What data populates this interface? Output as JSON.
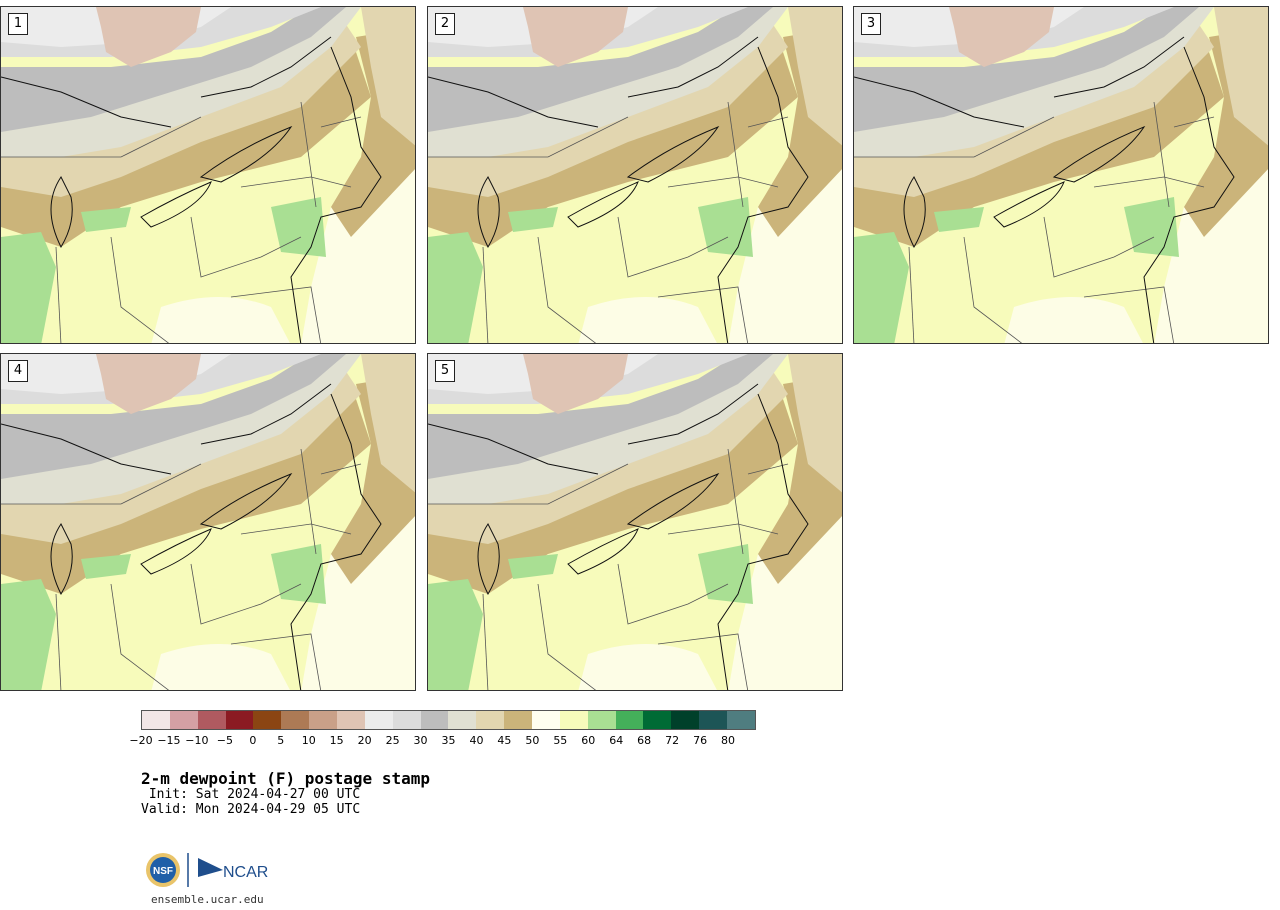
{
  "panels": [
    {
      "label": "1"
    },
    {
      "label": "2"
    },
    {
      "label": "3"
    },
    {
      "label": "4"
    },
    {
      "label": "5"
    }
  ],
  "colorbar": {
    "colors": [
      "#f2e6e6",
      "#d4a0a4",
      "#b05a60",
      "#8b1a22",
      "#8b4513",
      "#ad7a55",
      "#c9a088",
      "#dfc4b4",
      "#ececec",
      "#dcdcdc",
      "#bdbdbd",
      "#e0e0d2",
      "#e2d6b0",
      "#cbb47a",
      "#fffff0",
      "#f7fbbb",
      "#a9df93",
      "#44b05a",
      "#006b35",
      "#00402a",
      "#1d5556",
      "#4f7d80"
    ],
    "ticks": [
      "−20",
      "−15",
      "−10",
      "−5",
      "0",
      "5",
      "10",
      "15",
      "20",
      "25",
      "30",
      "35",
      "40",
      "45",
      "50",
      "55",
      "60",
      "64",
      "68",
      "72",
      "76",
      "80"
    ]
  },
  "title": "2-m dewpoint (F) postage stamp",
  "init_line": " Init: Sat 2024-04-27 00 UTC",
  "valid_line": "Valid: Mon 2024-04-29 05 UTC",
  "logo": {
    "nsf_text": "NSF",
    "ncar_text": "NCAR"
  },
  "site": "ensemble.ucar.edu"
}
